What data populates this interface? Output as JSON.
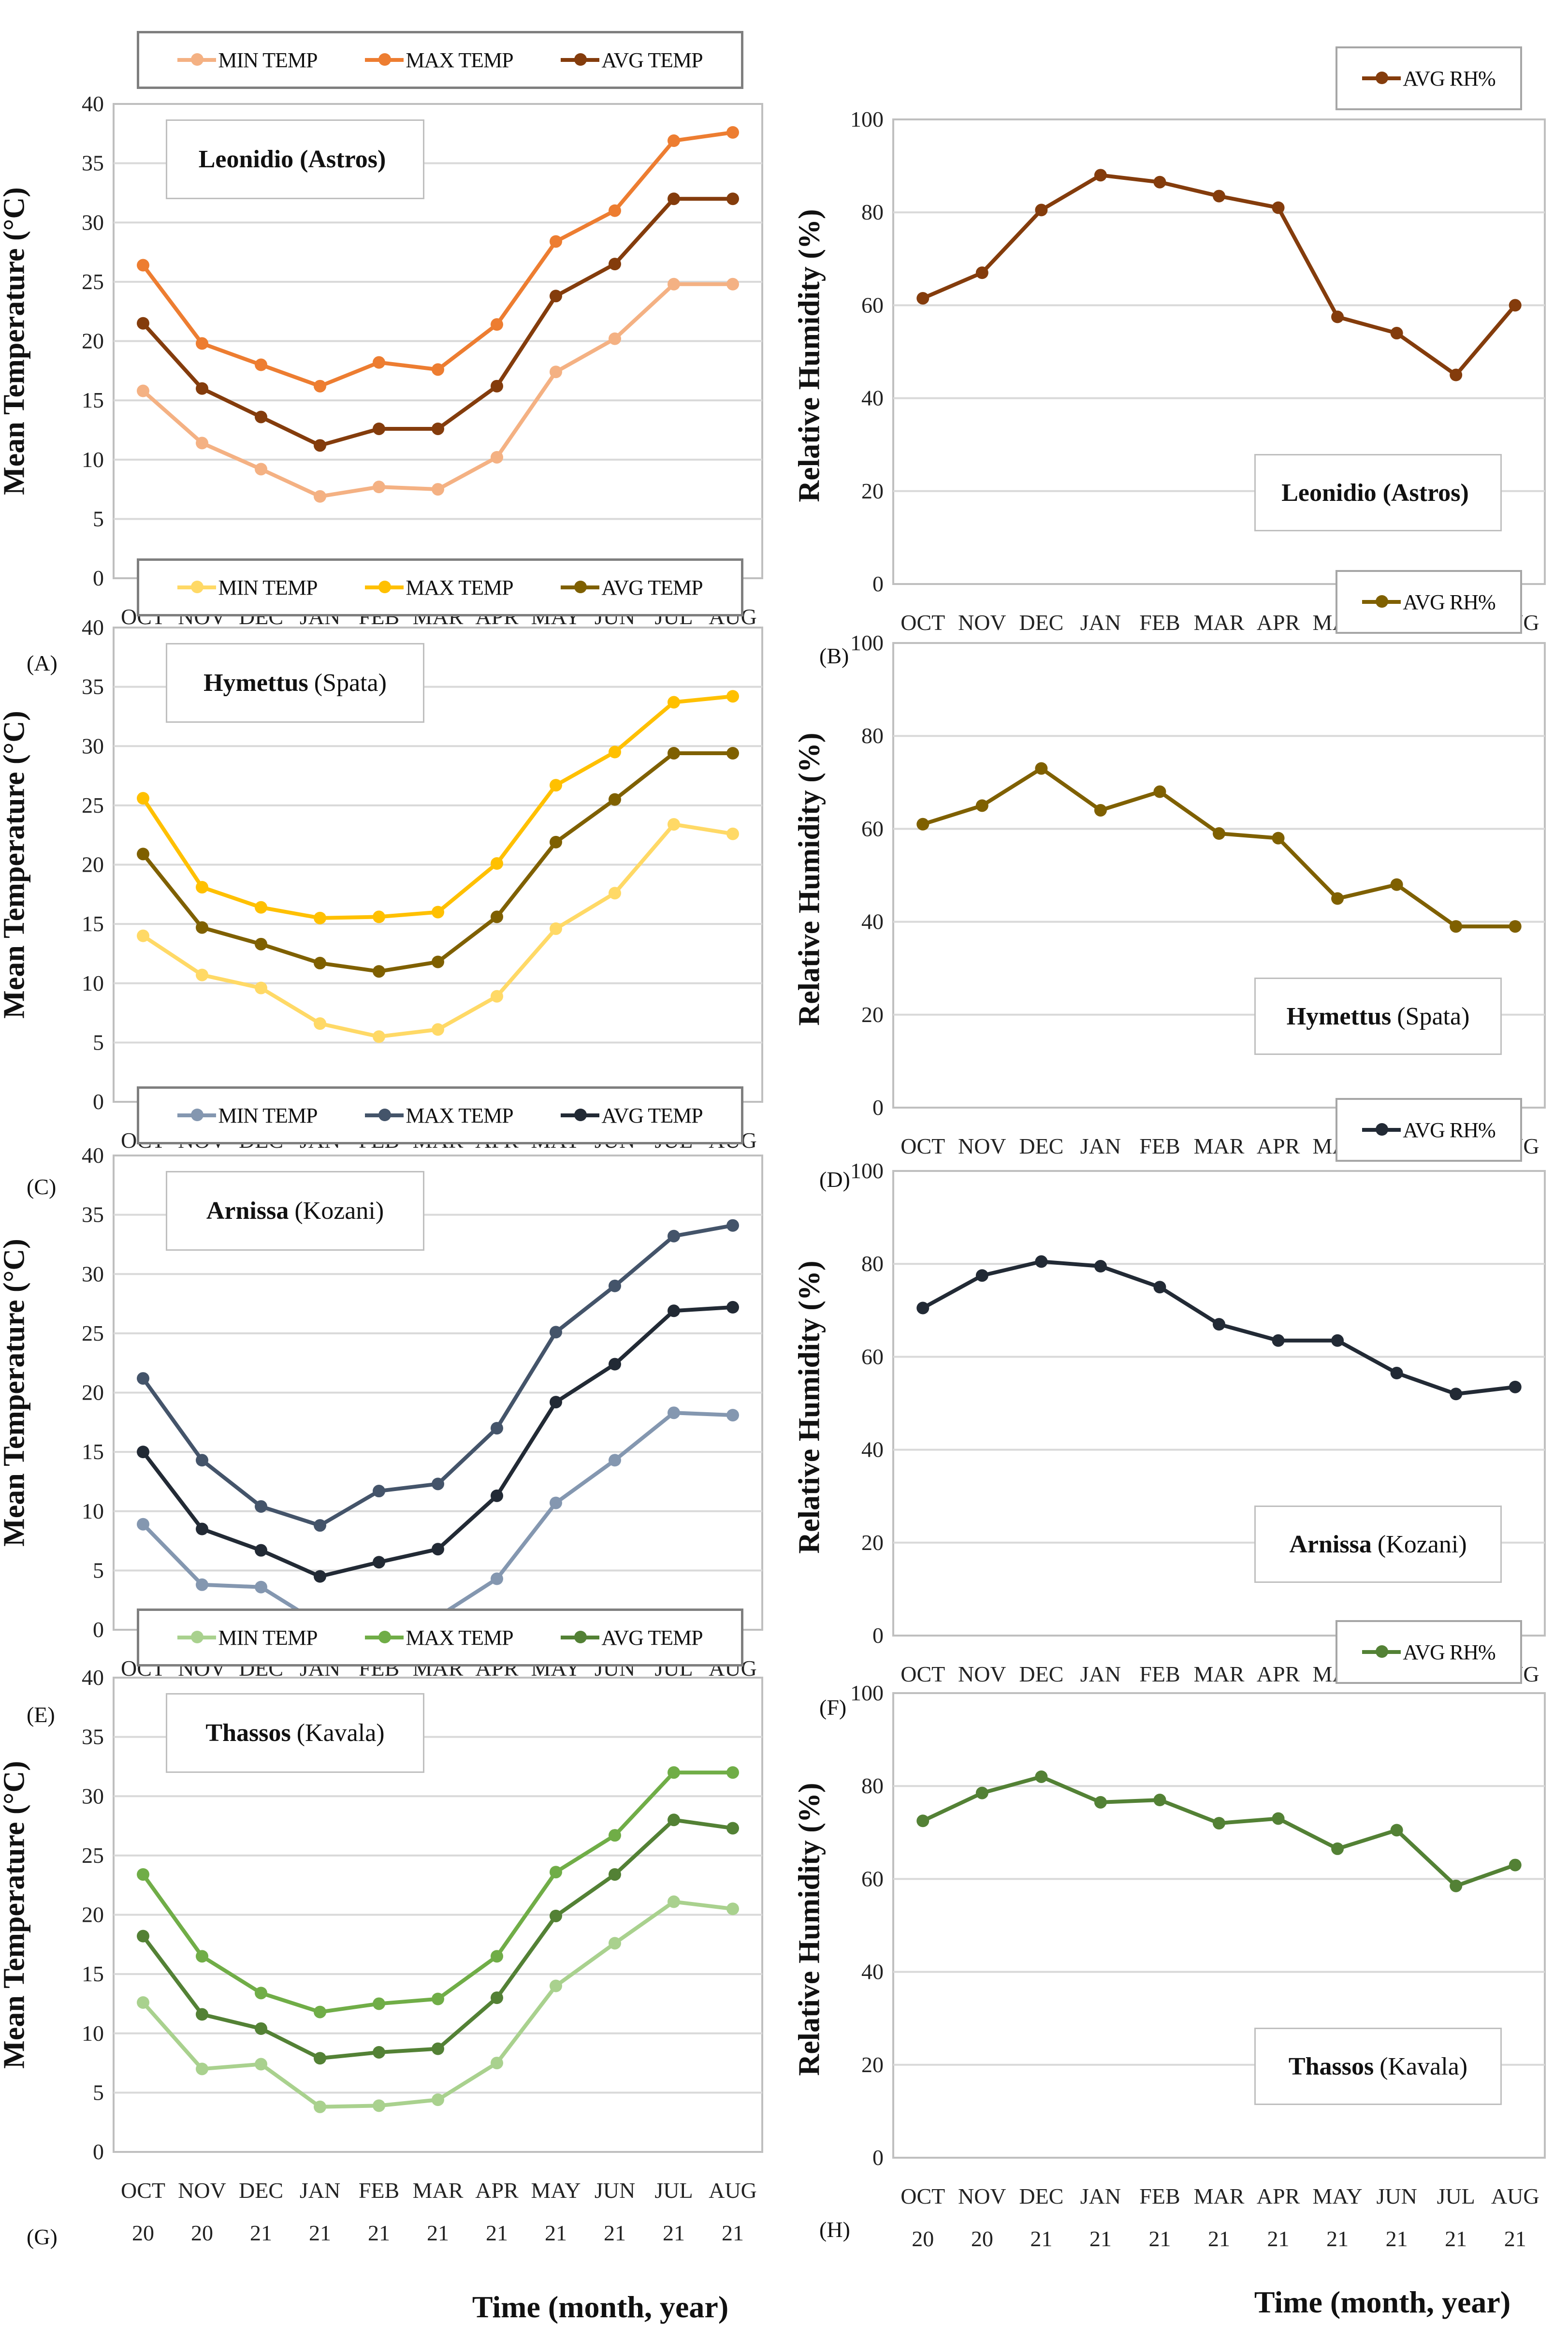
{
  "axis_labels": {
    "temp_ylabel": "Mean Temperature (°C)",
    "rh_ylabel": "Relative Humidity (%)",
    "xlabel": "Time (month, year)"
  },
  "chart_data": [
    {
      "panel": "(A)",
      "type": "line",
      "location_bold": "Leonidio (Astros)",
      "location_rest": "",
      "ylabel": "Mean Temperature (°C)",
      "xlabel": "Time (month, year)",
      "ylim": [
        0,
        40
      ],
      "yticks": [
        0,
        5,
        10,
        15,
        20,
        25,
        30,
        35,
        40
      ],
      "grid": true,
      "legend": "top",
      "categories": [
        [
          "OCT",
          "20"
        ],
        [
          "NOV",
          "20"
        ],
        [
          "DEC",
          "21"
        ],
        [
          "JAN",
          "21"
        ],
        [
          "FEB",
          "21"
        ],
        [
          "MAR",
          "21"
        ],
        [
          "APR",
          "21"
        ],
        [
          "MAY",
          "21"
        ],
        [
          "JUN",
          "21"
        ],
        [
          "JUL",
          "21"
        ],
        [
          "AUG",
          "21"
        ]
      ],
      "series": [
        {
          "name": "MIN TEMP",
          "color": "#F4B183",
          "values": [
            15.8,
            11.4,
            9.2,
            6.9,
            7.7,
            7.5,
            10.2,
            17.4,
            20.2,
            24.8,
            24.8
          ]
        },
        {
          "name": "MAX TEMP",
          "color": "#ED7D31",
          "values": [
            26.4,
            19.8,
            18.0,
            16.2,
            18.2,
            17.6,
            21.4,
            28.4,
            31.0,
            36.9,
            37.6
          ]
        },
        {
          "name": "AVG TEMP",
          "color": "#843C0C",
          "values": [
            21.5,
            16.0,
            13.6,
            11.2,
            12.6,
            12.6,
            16.2,
            23.8,
            26.5,
            32.0,
            32.0
          ]
        }
      ]
    },
    {
      "panel": "(B)",
      "type": "line",
      "location_bold": "Leonidio (Astros)",
      "location_rest": "",
      "ylabel": "Relative Humidity (%)",
      "xlabel": "Time (month, year)",
      "ylim": [
        0,
        100
      ],
      "yticks": [
        0,
        20,
        40,
        60,
        80,
        100
      ],
      "grid": true,
      "legend": "top-right",
      "categories": [
        [
          "OCT",
          "20"
        ],
        [
          "NOV",
          "20"
        ],
        [
          "DEC",
          "21"
        ],
        [
          "JAN",
          "21"
        ],
        [
          "FEB",
          "21"
        ],
        [
          "MAR",
          "21"
        ],
        [
          "APR",
          "21"
        ],
        [
          "MAY",
          "21"
        ],
        [
          "JUN",
          "21"
        ],
        [
          "JUL",
          "21"
        ],
        [
          "AUG",
          "21"
        ]
      ],
      "series": [
        {
          "name": "AVG RH%",
          "color": "#843C0C",
          "values": [
            61.5,
            67,
            80.5,
            88,
            86.5,
            83.5,
            81,
            57.5,
            54,
            45,
            60
          ]
        }
      ]
    },
    {
      "panel": "(C)",
      "type": "line",
      "location_bold": "Hymettus",
      "location_rest": "(Spata)",
      "ylabel": "Mean Temperature (°C)",
      "xlabel": "Time (month, year)",
      "ylim": [
        0,
        40
      ],
      "yticks": [
        0,
        5,
        10,
        15,
        20,
        25,
        30,
        35,
        40
      ],
      "grid": true,
      "legend": "top",
      "categories": [
        [
          "OCT",
          "20"
        ],
        [
          "NOV",
          "20"
        ],
        [
          "DEC",
          "21"
        ],
        [
          "JAN",
          "21"
        ],
        [
          "FEB",
          "21"
        ],
        [
          "MAR",
          "21"
        ],
        [
          "APR",
          "21"
        ],
        [
          "MAY",
          "21"
        ],
        [
          "JUN",
          "21"
        ],
        [
          "JUL",
          "21"
        ],
        [
          "AUG",
          "21"
        ]
      ],
      "series": [
        {
          "name": "MIN TEMP",
          "color": "#FFD966",
          "values": [
            14.0,
            10.7,
            9.6,
            6.6,
            5.5,
            6.1,
            8.9,
            14.6,
            17.6,
            23.4,
            22.6
          ]
        },
        {
          "name": "MAX TEMP",
          "color": "#FFC000",
          "values": [
            25.6,
            18.1,
            16.4,
            15.5,
            15.6,
            16.0,
            20.1,
            26.7,
            29.5,
            33.7,
            34.2
          ]
        },
        {
          "name": "AVG TEMP",
          "color": "#7F6000",
          "values": [
            20.9,
            14.7,
            13.3,
            11.7,
            11.0,
            11.8,
            15.6,
            21.9,
            25.5,
            29.4,
            29.4
          ]
        }
      ]
    },
    {
      "panel": "(D)",
      "type": "line",
      "location_bold": "Hymettus",
      "location_rest": "(Spata)",
      "ylabel": "Relative Humidity (%)",
      "xlabel": "Time (month, year)",
      "ylim": [
        0,
        100
      ],
      "yticks": [
        0,
        20,
        40,
        60,
        80,
        100
      ],
      "grid": true,
      "legend": "top-right",
      "categories": [
        [
          "OCT",
          "20"
        ],
        [
          "NOV",
          "20"
        ],
        [
          "DEC",
          "21"
        ],
        [
          "JAN",
          "21"
        ],
        [
          "FEB",
          "21"
        ],
        [
          "MAR",
          "21"
        ],
        [
          "APR",
          "21"
        ],
        [
          "MAY",
          "21"
        ],
        [
          "JUN",
          "21"
        ],
        [
          "JUL",
          "21"
        ],
        [
          "AUG",
          "21"
        ]
      ],
      "series": [
        {
          "name": "AVG RH%",
          "color": "#7F6000",
          "values": [
            61,
            65,
            73,
            64,
            68,
            59,
            58,
            45,
            48,
            39,
            39
          ]
        }
      ]
    },
    {
      "panel": "(E)",
      "type": "line",
      "location_bold": "Arnissa",
      "location_rest": "(Kozani)",
      "ylabel": "Mean Temperature (°C)",
      "xlabel": "Time (month, year)",
      "ylim": [
        0,
        40
      ],
      "yticks": [
        0,
        5,
        10,
        15,
        20,
        25,
        30,
        35,
        40
      ],
      "grid": true,
      "legend": "top",
      "categories": [
        [
          "OCT",
          "20"
        ],
        [
          "NOV",
          "20"
        ],
        [
          "DEC",
          "21"
        ],
        [
          "JAN",
          "21"
        ],
        [
          "FEB",
          "21"
        ],
        [
          "MAR",
          "21"
        ],
        [
          "APR",
          "21"
        ],
        [
          "MAY",
          "21"
        ],
        [
          "JUN",
          "21"
        ],
        [
          "JUL",
          "21"
        ],
        [
          "AUG",
          "21"
        ]
      ],
      "series": [
        {
          "name": "MIN TEMP",
          "color": "#8497B0",
          "values": [
            8.9,
            3.8,
            3.6,
            0.5,
            0.3,
            1.1,
            4.3,
            10.7,
            14.3,
            18.3,
            18.1
          ]
        },
        {
          "name": "MAX TEMP",
          "color": "#44546A",
          "values": [
            21.2,
            14.3,
            10.4,
            8.8,
            11.7,
            12.3,
            17.0,
            25.1,
            29.0,
            33.2,
            34.1
          ]
        },
        {
          "name": "AVG TEMP",
          "color": "#222A35",
          "values": [
            15.0,
            8.5,
            6.7,
            4.5,
            5.7,
            6.8,
            11.3,
            19.2,
            22.4,
            26.9,
            27.2
          ]
        }
      ]
    },
    {
      "panel": "(F)",
      "type": "line",
      "location_bold": "Arnissa",
      "location_rest": "(Kozani)",
      "ylabel": "Relative Humidity (%)",
      "xlabel": "Time (month, year)",
      "ylim": [
        0,
        100
      ],
      "yticks": [
        0,
        20,
        40,
        60,
        80,
        100
      ],
      "grid": true,
      "legend": "top-right",
      "categories": [
        [
          "OCT",
          "20"
        ],
        [
          "NOV",
          "20"
        ],
        [
          "DEC",
          "21"
        ],
        [
          "JAN",
          "21"
        ],
        [
          "FEB",
          "21"
        ],
        [
          "MAR",
          "21"
        ],
        [
          "APR",
          "21"
        ],
        [
          "MAY",
          "21"
        ],
        [
          "JUN",
          "21"
        ],
        [
          "JUL",
          "21"
        ],
        [
          "AUG",
          "21"
        ]
      ],
      "series": [
        {
          "name": "AVG RH%",
          "color": "#222A35",
          "values": [
            70.5,
            77.5,
            80.5,
            79.5,
            75,
            67,
            63.5,
            63.5,
            56.5,
            52,
            53.5
          ]
        }
      ]
    },
    {
      "panel": "(G)",
      "type": "line",
      "location_bold": "Thassos",
      "location_rest": "(Kavala)",
      "ylabel": "Mean Temperature (°C)",
      "xlabel": "Time (month, year)",
      "ylim": [
        0,
        40
      ],
      "yticks": [
        0,
        5,
        10,
        15,
        20,
        25,
        30,
        35,
        40
      ],
      "grid": true,
      "legend": "top",
      "categories": [
        [
          "OCT",
          "20"
        ],
        [
          "NOV",
          "20"
        ],
        [
          "DEC",
          "21"
        ],
        [
          "JAN",
          "21"
        ],
        [
          "FEB",
          "21"
        ],
        [
          "MAR",
          "21"
        ],
        [
          "APR",
          "21"
        ],
        [
          "MAY",
          "21"
        ],
        [
          "JUN",
          "21"
        ],
        [
          "JUL",
          "21"
        ],
        [
          "AUG",
          "21"
        ]
      ],
      "series": [
        {
          "name": "MIN TEMP",
          "color": "#A9D18E",
          "values": [
            12.6,
            7.0,
            7.4,
            3.8,
            3.9,
            4.4,
            7.5,
            14.0,
            17.6,
            21.1,
            20.5
          ]
        },
        {
          "name": "MAX TEMP",
          "color": "#70AD47",
          "values": [
            23.4,
            16.5,
            13.4,
            11.8,
            12.5,
            12.9,
            16.5,
            23.6,
            26.7,
            32.0,
            32.0
          ]
        },
        {
          "name": "AVG TEMP",
          "color": "#538135",
          "values": [
            18.2,
            11.6,
            10.4,
            7.9,
            8.4,
            8.7,
            13.0,
            19.9,
            23.4,
            28.0,
            27.3
          ]
        }
      ]
    },
    {
      "panel": "(H)",
      "type": "line",
      "location_bold": "Thassos",
      "location_rest": "(Kavala)",
      "ylabel": "Relative Humidity (%)",
      "xlabel": "Time (month, year)",
      "ylim": [
        0,
        100
      ],
      "yticks": [
        0,
        20,
        40,
        60,
        80,
        100
      ],
      "grid": true,
      "legend": "top-right",
      "categories": [
        [
          "OCT",
          "20"
        ],
        [
          "NOV",
          "20"
        ],
        [
          "DEC",
          "21"
        ],
        [
          "JAN",
          "21"
        ],
        [
          "FEB",
          "21"
        ],
        [
          "MAR",
          "21"
        ],
        [
          "APR",
          "21"
        ],
        [
          "MAY",
          "21"
        ],
        [
          "JUN",
          "21"
        ],
        [
          "JUL",
          "21"
        ],
        [
          "AUG",
          "21"
        ]
      ],
      "series": [
        {
          "name": "AVG RH%",
          "color": "#538135",
          "values": [
            72.5,
            78.5,
            82,
            76.5,
            77,
            72,
            73,
            66.5,
            70.5,
            58.5,
            63
          ]
        }
      ]
    }
  ]
}
